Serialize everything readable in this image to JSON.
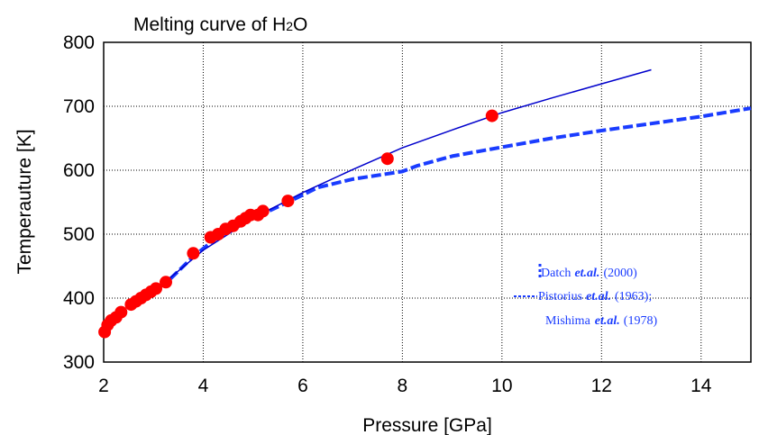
{
  "chart_data": {
    "type": "scatter",
    "title_prefix": "Melting curve of H",
    "title_sub": "2",
    "title_suffix": "O",
    "xlabel": "Pressure [GPa]",
    "ylabel": "Temperauture [K]",
    "xlim": [
      2,
      15
    ],
    "ylim": [
      300,
      800
    ],
    "xticks": [
      "2",
      "4",
      "6",
      "8",
      "10",
      "12",
      "14"
    ],
    "yticks": [
      "300",
      "400",
      "500",
      "600",
      "700",
      "800"
    ],
    "grid": true,
    "legend": {
      "line1_name": "Datch",
      "line1_etal": "et.al.",
      "line1_year": "(2000)",
      "line2_name": "Pistorius",
      "line2_etal": "et.al.",
      "line2_year": "(1963);",
      "line3_name": "Mishima",
      "line3_etal": "et.al.",
      "line3_year": "(1978)"
    },
    "colors": {
      "points": "#ff0000",
      "fit": "#0000cc",
      "literature": "#1a3cff"
    },
    "series": [
      {
        "style": "points",
        "x": [
          2.02,
          2.08,
          2.15,
          2.25,
          2.35,
          2.55,
          2.65,
          2.75,
          2.85,
          2.95,
          3.05,
          3.25,
          3.8,
          4.15,
          4.3,
          4.45,
          4.6,
          4.75,
          4.85,
          4.95,
          5.1,
          5.2,
          5.7,
          7.7,
          9.8
        ],
        "y": [
          347,
          358,
          365,
          370,
          378,
          390,
          395,
          400,
          405,
          410,
          415,
          425,
          470,
          495,
          500,
          508,
          513,
          520,
          525,
          530,
          530,
          536,
          552,
          618,
          685
        ]
      },
      {
        "style": "thin-line",
        "x": [
          3.0,
          4.0,
          5.0,
          6.0,
          7.0,
          8.0,
          9.0,
          10.0,
          11.0,
          12.0,
          13.0
        ],
        "y": [
          410,
          475,
          525,
          565,
          601,
          635,
          663,
          690,
          713,
          735,
          757
        ]
      },
      {
        "style": "thick-dashed",
        "x": [
          2.9,
          3.3,
          3.8,
          4.2,
          4.7,
          5.2,
          5.7,
          6.3,
          7.0,
          8.0,
          8.3,
          9.0,
          10.0,
          11.0,
          12.0,
          13.0,
          14.0,
          15.0
        ],
        "y": [
          405,
          427,
          465,
          490,
          515,
          532,
          550,
          573,
          586,
          598,
          607,
          622,
          636,
          650,
          662,
          673,
          684,
          697
        ]
      }
    ]
  }
}
